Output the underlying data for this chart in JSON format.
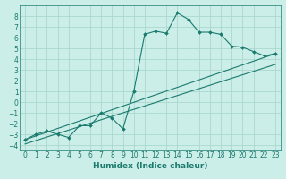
{
  "title": "",
  "xlabel": "Humidex (Indice chaleur)",
  "ylabel": "",
  "background_color": "#cceee8",
  "grid_color": "#aad8d0",
  "line_color": "#1a7a6e",
  "xlim": [
    -0.5,
    23.5
  ],
  "ylim": [
    -4.5,
    9.0
  ],
  "xticks": [
    0,
    1,
    2,
    3,
    4,
    5,
    6,
    7,
    8,
    9,
    10,
    11,
    12,
    13,
    14,
    15,
    16,
    17,
    18,
    19,
    20,
    21,
    22,
    23
  ],
  "yticks": [
    -4,
    -3,
    -2,
    -1,
    0,
    1,
    2,
    3,
    4,
    5,
    6,
    7,
    8
  ],
  "curve1_x": [
    0,
    1,
    2,
    3,
    4,
    5,
    6,
    7,
    8,
    9,
    10,
    11,
    12,
    13,
    14,
    15,
    16,
    17,
    18,
    19,
    20,
    21,
    22,
    23
  ],
  "curve1_y": [
    -3.5,
    -3.0,
    -2.7,
    -3.0,
    -3.3,
    -2.2,
    -2.2,
    -1.0,
    -1.5,
    -2.5,
    1.0,
    6.3,
    6.6,
    6.4,
    8.3,
    7.7,
    6.5,
    6.5,
    6.3,
    5.2,
    5.1,
    4.7,
    4.3,
    4.5
  ],
  "curve2_x": [
    0,
    23
  ],
  "curve2_y": [
    -3.5,
    4.5
  ],
  "curve3_x": [
    0,
    23
  ],
  "curve3_y": [
    -3.9,
    3.5
  ],
  "fontsize_axis": 5.5,
  "fontsize_label": 6.5
}
